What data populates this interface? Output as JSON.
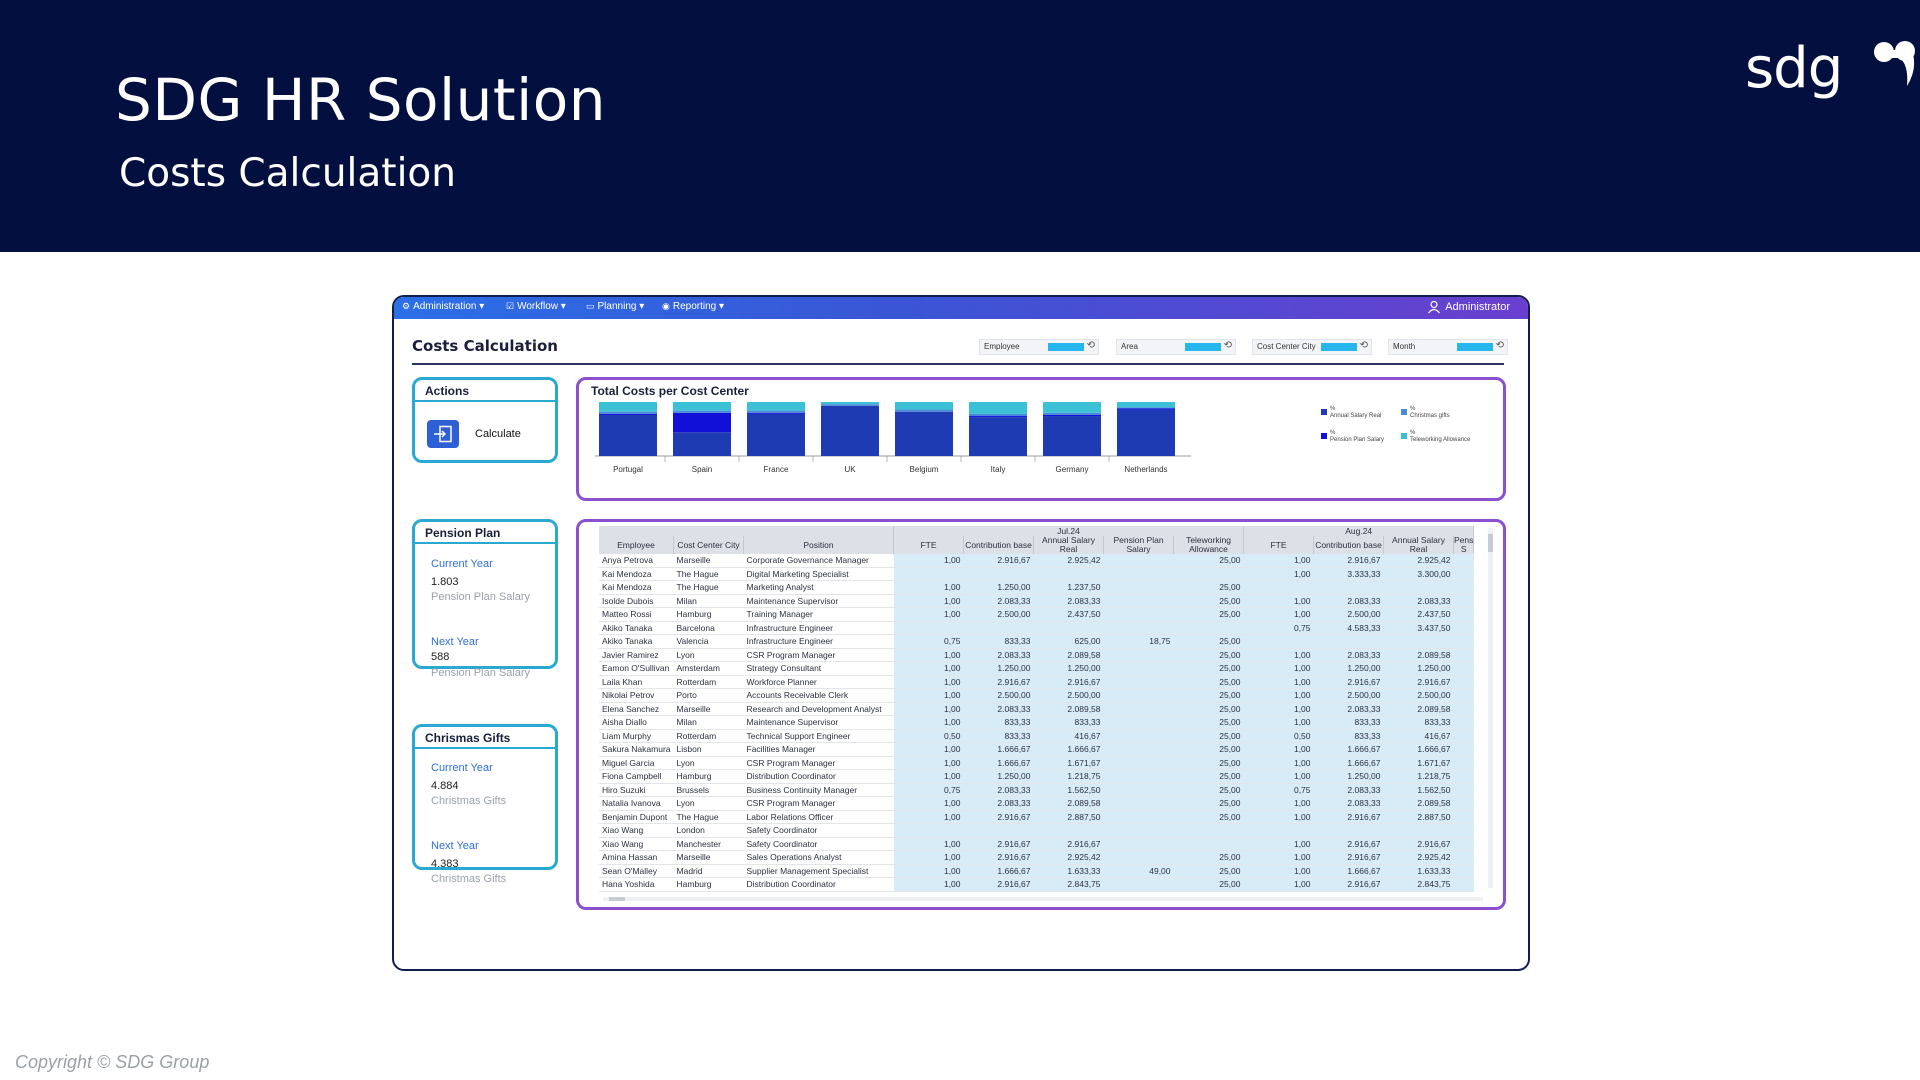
{
  "slide": {
    "title": "SDG HR Solution",
    "subtitle": "Costs Calculation",
    "logo_text": "sdg",
    "copyright": "Copyright © SDG Group"
  },
  "app": {
    "menu": [
      {
        "label": "Administration ▾",
        "icon": "gear-icon"
      },
      {
        "label": "Workflow ▾",
        "icon": "checkbox-icon"
      },
      {
        "label": "Planning ▾",
        "icon": "monitor-icon"
      },
      {
        "label": "Reporting ▾",
        "icon": "eye-icon"
      }
    ],
    "user": "Administrator",
    "page_title": "Costs Calculation",
    "filters": [
      "Employee",
      "Area",
      "Cost Center City",
      "Month"
    ]
  },
  "actions": {
    "title": "Actions",
    "calculate_label": "Calculate"
  },
  "pension": {
    "title": "Pension Plan",
    "current_label": "Current Year",
    "current_value": "1.803",
    "current_sub": "Pension Plan Salary",
    "next_label": "Next Year",
    "next_value": "588",
    "next_sub": "Pension Plan Salary"
  },
  "gifts": {
    "title": "Chrismas Gifts",
    "current_label": "Current Year",
    "current_value": "4.884",
    "current_sub": "Christmas Gifts",
    "next_label": "Next Year",
    "next_value": "4.383",
    "next_sub": "Christmas Gifts"
  },
  "chart_data": {
    "type": "bar",
    "stacked": true,
    "percent": true,
    "title": "Total Costs per Cost Center",
    "categories": [
      "Portugal",
      "Spain",
      "France",
      "UK",
      "Belgium",
      "Italy",
      "Germany",
      "Netherlands"
    ],
    "series": [
      {
        "name": "Annual Salary Real",
        "color": "#1f3bb3",
        "values": [
          0.76,
          0.44,
          0.78,
          0.93,
          0.82,
          0.72,
          0.74,
          0.86
        ]
      },
      {
        "name": "Pension Plan Salary",
        "color": "#1010d8",
        "values": [
          0.02,
          0.36,
          0.02,
          0.0,
          0.0,
          0.02,
          0.02,
          0.02
        ]
      },
      {
        "name": "Christmas gifts",
        "color": "#4a88d8",
        "values": [
          0.04,
          0.04,
          0.04,
          0.03,
          0.04,
          0.04,
          0.04,
          0.02
        ]
      },
      {
        "name": "Teleworking Allowance",
        "color": "#3cc0d6",
        "values": [
          0.18,
          0.16,
          0.16,
          0.04,
          0.14,
          0.22,
          0.2,
          0.1
        ]
      }
    ],
    "legend": [
      "%\nAnnual Salary Real",
      "%\nChristmas gifts",
      "%\nPension Plan Salary",
      "%\nTeleworking Allowance"
    ],
    "legend_position": "right"
  },
  "table": {
    "group_headers": [
      "Jul.24",
      "Aug.24"
    ],
    "columns": [
      "Employee",
      "Cost Center City",
      "Position",
      "FTE",
      "Contribution base",
      "Annual Salary Real",
      "Pension Plan Salary",
      "Teleworking Allowance",
      "FTE",
      "Contribution base",
      "Annual Salary Real",
      "Pens S"
    ],
    "rows": [
      [
        "Anya Petrova",
        "Marseille",
        "Corporate Governance Manager",
        "1,00",
        "2.916,67",
        "2.925,42",
        "",
        "25,00",
        "1,00",
        "2.916,67",
        "2.925,42",
        ""
      ],
      [
        "Kai Mendoza",
        "The Hague",
        "Digital Marketing Specialist",
        "",
        "",
        "",
        "",
        "",
        "1,00",
        "3.333,33",
        "3.300,00",
        ""
      ],
      [
        "Kai Mendoza",
        "The Hague",
        "Marketing Analyst",
        "1,00",
        "1.250,00",
        "1.237,50",
        "",
        "25,00",
        "",
        "",
        "",
        ""
      ],
      [
        "Isolde Dubois",
        "Milan",
        "Maintenance Supervisor",
        "1,00",
        "2.083,33",
        "2.083,33",
        "",
        "25,00",
        "1,00",
        "2.083,33",
        "2.083,33",
        ""
      ],
      [
        "Matteo Rossi",
        "Hamburg",
        "Training Manager",
        "1,00",
        "2.500,00",
        "2.437,50",
        "",
        "25,00",
        "1,00",
        "2.500,00",
        "2.437,50",
        ""
      ],
      [
        "Akiko Tanaka",
        "Barcelona",
        "Infrastructure Engineer",
        "",
        "",
        "",
        "",
        "",
        "0,75",
        "4.583,33",
        "3.437,50",
        ""
      ],
      [
        "Akiko Tanaka",
        "Valencia",
        "Infrastructure Engineer",
        "0,75",
        "833,33",
        "625,00",
        "18,75",
        "25,00",
        "",
        "",
        "",
        ""
      ],
      [
        "Javier Ramirez",
        "Lyon",
        "CSR Program Manager",
        "1,00",
        "2.083,33",
        "2.089,58",
        "",
        "25,00",
        "1,00",
        "2.083,33",
        "2.089,58",
        ""
      ],
      [
        "Eamon O'Sullivan",
        "Amsterdam",
        "Strategy Consultant",
        "1,00",
        "1.250,00",
        "1.250,00",
        "",
        "25,00",
        "1,00",
        "1.250,00",
        "1.250,00",
        ""
      ],
      [
        "Laila Khan",
        "Rotterdam",
        "Workforce Planner",
        "1,00",
        "2.916,67",
        "2.916,67",
        "",
        "25,00",
        "1,00",
        "2.916,67",
        "2.916,67",
        ""
      ],
      [
        "Nikolai Petrov",
        "Porto",
        "Accounts Receivable Clerk",
        "1,00",
        "2.500,00",
        "2.500,00",
        "",
        "25,00",
        "1,00",
        "2.500,00",
        "2.500,00",
        ""
      ],
      [
        "Elena Sanchez",
        "Marseille",
        "Research and Development Analyst",
        "1,00",
        "2.083,33",
        "2.089,58",
        "",
        "25,00",
        "1,00",
        "2.083,33",
        "2.089,58",
        ""
      ],
      [
        "Aisha Diallo",
        "Milan",
        "Maintenance Supervisor",
        "1,00",
        "833,33",
        "833,33",
        "",
        "25,00",
        "1,00",
        "833,33",
        "833,33",
        ""
      ],
      [
        "Liam Murphy",
        "Rotterdam",
        "Technical Support Engineer",
        "0,50",
        "833,33",
        "416,67",
        "",
        "25,00",
        "0,50",
        "833,33",
        "416,67",
        ""
      ],
      [
        "Sakura Nakamura",
        "Lisbon",
        "Facilities Manager",
        "1,00",
        "1.666,67",
        "1.666,67",
        "",
        "25,00",
        "1,00",
        "1.666,67",
        "1.666,67",
        ""
      ],
      [
        "Miguel Garcia",
        "Lyon",
        "CSR Program Manager",
        "1,00",
        "1.666,67",
        "1.671,67",
        "",
        "25,00",
        "1,00",
        "1.666,67",
        "1.671,67",
        ""
      ],
      [
        "Fiona Campbell",
        "Hamburg",
        "Distribution Coordinator",
        "1,00",
        "1.250,00",
        "1.218,75",
        "",
        "25,00",
        "1,00",
        "1.250,00",
        "1.218,75",
        ""
      ],
      [
        "Hiro Suzuki",
        "Brussels",
        "Business Continuity Manager",
        "0,75",
        "2.083,33",
        "1.562,50",
        "",
        "25,00",
        "0,75",
        "2.083,33",
        "1.562,50",
        ""
      ],
      [
        "Natalia Ivanova",
        "Lyon",
        "CSR Program Manager",
        "1,00",
        "2.083,33",
        "2.089,58",
        "",
        "25,00",
        "1,00",
        "2.083,33",
        "2.089,58",
        ""
      ],
      [
        "Benjamin Dupont",
        "The Hague",
        "Labor Relations Officer",
        "1,00",
        "2.916,67",
        "2.887,50",
        "",
        "25,00",
        "1,00",
        "2.916,67",
        "2.887,50",
        ""
      ],
      [
        "Xiao Wang",
        "London",
        "Safety Coordinator",
        "",
        "",
        "",
        "",
        "",
        "",
        "",
        "",
        ""
      ],
      [
        "Xiao Wang",
        "Manchester",
        "Safety Coordinator",
        "1,00",
        "2.916,67",
        "2.916,67",
        "",
        "",
        "1,00",
        "2.916,67",
        "2.916,67",
        ""
      ],
      [
        "Amina Hassan",
        "Marseille",
        "Sales Operations Analyst",
        "1,00",
        "2.916,67",
        "2.925,42",
        "",
        "25,00",
        "1,00",
        "2.916,67",
        "2.925,42",
        ""
      ],
      [
        "Sean O'Malley",
        "Madrid",
        "Supplier Management Specialist",
        "1,00",
        "1.666,67",
        "1.633,33",
        "49,00",
        "25,00",
        "1,00",
        "1.666,67",
        "1.633,33",
        ""
      ],
      [
        "Hana Yoshida",
        "Hamburg",
        "Distribution Coordinator",
        "1,00",
        "2.916,67",
        "2.843,75",
        "",
        "25,00",
        "1,00",
        "2.916,67",
        "2.843,75",
        ""
      ]
    ]
  }
}
